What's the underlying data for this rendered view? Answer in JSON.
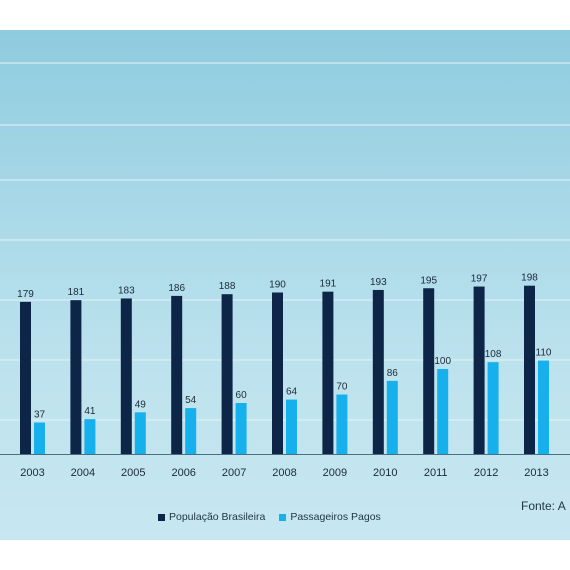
{
  "chart_data": {
    "type": "bar",
    "categories": [
      "2003",
      "2004",
      "2005",
      "2006",
      "2007",
      "2008",
      "2009",
      "2010",
      "2011",
      "2012",
      "2013"
    ],
    "series": [
      {
        "name": "População Brasileira",
        "values": [
          179,
          181,
          183,
          186,
          188,
          190,
          191,
          193,
          195,
          197,
          198
        ],
        "color": "#0d2547"
      },
      {
        "name": "Passageiros Pagos",
        "values": [
          37,
          41,
          49,
          54,
          60,
          64,
          70,
          86,
          100,
          108,
          110
        ],
        "color": "#16b0ec"
      }
    ],
    "title": "",
    "xlabel": "",
    "ylabel": "",
    "ylim": [
      0,
      240
    ],
    "grid": true,
    "legend": "bottom"
  },
  "source_text": "Fonte: A"
}
